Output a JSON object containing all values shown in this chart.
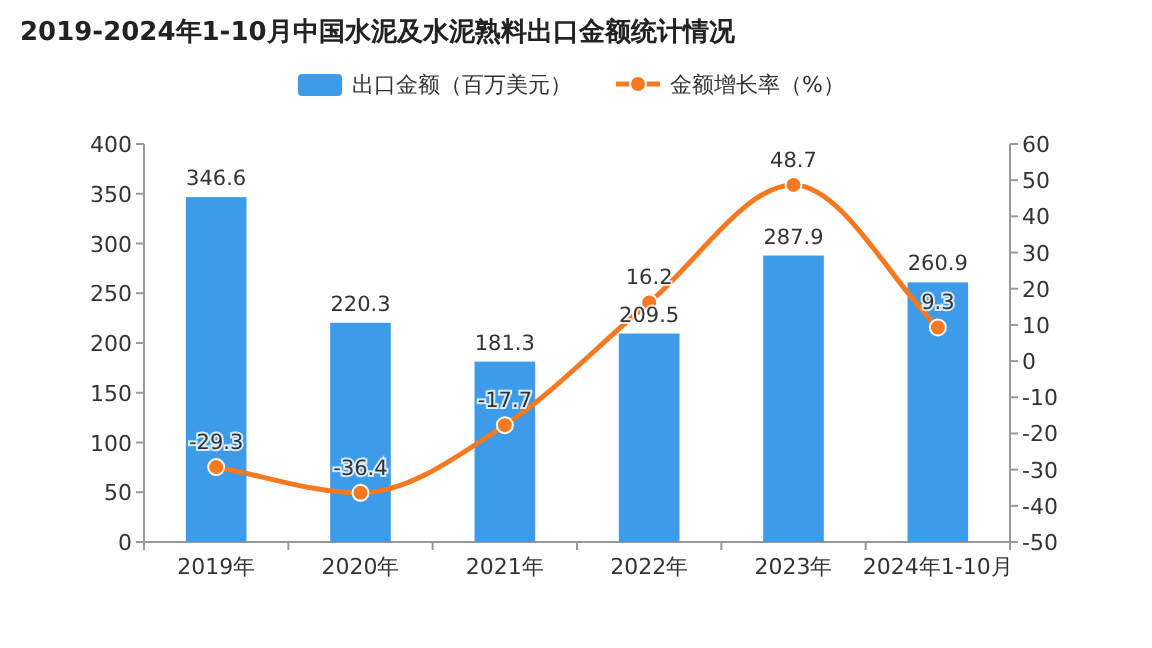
{
  "chart_data": {
    "type": "bar",
    "title": "2019-2024年1-10月中国水泥及水泥熟料出口金额统计情况",
    "categories": [
      "2019年",
      "2020年",
      "2021年",
      "2022年",
      "2023年",
      "2024年1-10月"
    ],
    "series": [
      {
        "name": "出口金额（百万美元）",
        "color": "#3d9be9",
        "values": [
          346.6,
          220.3,
          181.3,
          209.5,
          287.9,
          260.9
        ]
      },
      {
        "name": "金额增长率（%）",
        "type": "line",
        "axis": "y2",
        "color": "#f47920",
        "marker": "circle",
        "values": [
          -29.3,
          -36.4,
          -17.7,
          16.2,
          48.7,
          9.3
        ]
      }
    ],
    "ylim": [
      0,
      400
    ],
    "yticks": [
      0,
      50,
      100,
      150,
      200,
      250,
      300,
      350,
      400
    ],
    "y2lim": [
      -50,
      60
    ],
    "y2ticks": [
      -50,
      -40,
      -30,
      -20,
      -10,
      0,
      10,
      20,
      30,
      40,
      50,
      60
    ],
    "data_labels": true,
    "legend": "top",
    "grid": false
  }
}
